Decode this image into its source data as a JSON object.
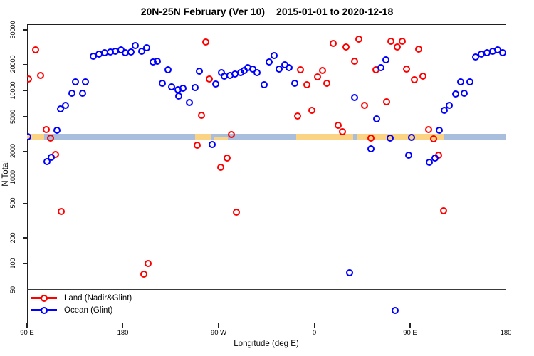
{
  "title": {
    "left": "20N-25N February (Ver 10)",
    "right": "2015-01-01 to 2020-12-18"
  },
  "axes": {
    "x": {
      "label": "Longitude (deg E)",
      "ticks": [
        {
          "deg": 90,
          "label": "90 E"
        },
        {
          "deg": 180,
          "label": "180"
        },
        {
          "deg": 270,
          "label": "90 W"
        },
        {
          "deg": 360,
          "label": "0"
        },
        {
          "deg": 450,
          "label": "90 E"
        },
        {
          "deg": 540,
          "label": "180"
        }
      ]
    },
    "y": {
      "label": "N Total",
      "scale": "log",
      "ticks": [
        50,
        100,
        200,
        500,
        1000,
        2000,
        5000,
        10000,
        20000,
        50000
      ]
    }
  },
  "legend": [
    {
      "label": "Land (Nadir&Glint)",
      "color": "#ff0000"
    },
    {
      "label": "Ocean (Glint)",
      "color": "#0000ff"
    }
  ],
  "colors": {
    "land": "#ff0000",
    "ocean": "#0000ff",
    "band_ocean": "#a8bedc",
    "band_land": "#fad384",
    "refline": "#3a3a3a"
  },
  "chart_data": {
    "type": "scatter",
    "title": "20N-25N February (Ver 10)  2015-01-01 to 2020-12-18",
    "xlabel": "Longitude (deg E)",
    "ylabel": "N Total",
    "x_axis_note": "longitude wraps: axis runs 90E,180,90W,0,90E,180 encoded as 90..540 deg",
    "x_range": [
      90,
      540
    ],
    "y_range_ticks": [
      50,
      50000
    ],
    "grid": false,
    "legend_position": "bottom-left",
    "refline_n": 51,
    "band": {
      "n_value": 2900,
      "note": "horizontal expected-count band: ocean-colored base with land-colored segments",
      "land_segments": [
        [
          90,
          106
        ],
        [
          248,
          262.5
        ],
        [
          343,
          481.5
        ]
      ],
      "land_low_segments": [
        [
          266,
          279
        ]
      ],
      "ocean_gap_segments": [
        [
          396.5,
          400
        ]
      ]
    },
    "series": [
      {
        "name": "Land (Nadir&Glint)",
        "color": "#ff0000",
        "points": [
          [
            98,
            29500
          ],
          [
            91,
            13500
          ],
          [
            103,
            14900
          ],
          [
            108,
            3560
          ],
          [
            112,
            2800
          ],
          [
            117,
            1810
          ],
          [
            122,
            403
          ],
          [
            204,
            100
          ],
          [
            200,
            76
          ],
          [
            258,
            36300
          ],
          [
            261.5,
            13500
          ],
          [
            250,
            2315
          ],
          [
            254,
            5200
          ],
          [
            278,
            1670
          ],
          [
            272,
            1295
          ],
          [
            282,
            3080
          ],
          [
            287,
            392
          ],
          [
            347,
            17400
          ],
          [
            353,
            11580
          ],
          [
            344,
            5030
          ],
          [
            357.5,
            5900
          ],
          [
            363,
            14400
          ],
          [
            368,
            16900
          ],
          [
            371.5,
            12170
          ],
          [
            377.5,
            35000
          ],
          [
            390,
            32000
          ],
          [
            382.6,
            3960
          ],
          [
            386.6,
            3340
          ],
          [
            397.5,
            21870
          ],
          [
            402,
            39100
          ],
          [
            407,
            6775
          ],
          [
            413.2,
            2800
          ],
          [
            417.6,
            17400
          ],
          [
            427.6,
            7350
          ],
          [
            432,
            37100
          ],
          [
            437.7,
            31900
          ],
          [
            442.6,
            36700
          ],
          [
            446.6,
            17760
          ],
          [
            453.8,
            13230
          ],
          [
            457.8,
            29850
          ],
          [
            462,
            14700
          ],
          [
            467.2,
            3560
          ],
          [
            472.3,
            2780
          ],
          [
            476.8,
            1780
          ],
          [
            481.4,
            411
          ]
        ]
      },
      {
        "name": "Ocean (Glint)",
        "color": "#0000ff",
        "points": [
          [
            90.7,
            2910
          ],
          [
            109,
            1500
          ],
          [
            113,
            1700
          ],
          [
            118.3,
            3450
          ],
          [
            121.5,
            6080
          ],
          [
            126.3,
            6690
          ],
          [
            132.4,
            9330
          ],
          [
            135.7,
            12560
          ],
          [
            142.4,
            9330
          ],
          [
            144.7,
            12560
          ],
          [
            152.4,
            24680
          ],
          [
            157.6,
            26290
          ],
          [
            162.9,
            27290
          ],
          [
            168.1,
            27670
          ],
          [
            173,
            28500
          ],
          [
            178.3,
            29600
          ],
          [
            182.3,
            27300
          ],
          [
            187.5,
            27970
          ],
          [
            191.5,
            32800
          ],
          [
            197.7,
            28500
          ],
          [
            202.6,
            31330
          ],
          [
            208.2,
            21470
          ],
          [
            212.6,
            21870
          ],
          [
            217.1,
            12170
          ],
          [
            222.7,
            17230
          ],
          [
            226,
            10940
          ],
          [
            231.6,
            10270
          ],
          [
            232.7,
            8610
          ],
          [
            236.7,
            10550
          ],
          [
            242.6,
            7260
          ],
          [
            247.7,
            10870
          ],
          [
            252.1,
            16690
          ],
          [
            264,
            2360
          ],
          [
            267.3,
            11800
          ],
          [
            272.9,
            16160
          ],
          [
            275.5,
            14710
          ],
          [
            280.7,
            14980
          ],
          [
            285.6,
            15470
          ],
          [
            290.7,
            16160
          ],
          [
            293.9,
            16910
          ],
          [
            297.4,
            18350
          ],
          [
            301.9,
            17770
          ],
          [
            306.3,
            16160
          ],
          [
            313,
            11590
          ],
          [
            317.5,
            21230
          ],
          [
            322.4,
            25470
          ],
          [
            326.9,
            17770
          ],
          [
            332.4,
            19900
          ],
          [
            336.4,
            18350
          ],
          [
            341.4,
            12030
          ],
          [
            392.9,
            79
          ],
          [
            397.6,
            8340
          ],
          [
            413.2,
            2110
          ],
          [
            418.5,
            4700
          ],
          [
            422.7,
            18350
          ],
          [
            427.2,
            22460
          ],
          [
            431,
            2800
          ],
          [
            435.8,
            29
          ],
          [
            448.4,
            1780
          ],
          [
            451.5,
            2890
          ],
          [
            468.3,
            1470
          ],
          [
            473.4,
            1670
          ],
          [
            477.4,
            3450
          ],
          [
            482.3,
            5900
          ],
          [
            486.8,
            6690
          ],
          [
            493,
            9160
          ],
          [
            497.5,
            12560
          ],
          [
            500.6,
            9280
          ],
          [
            506.4,
            12560
          ],
          [
            511.3,
            24350
          ],
          [
            516.8,
            26430
          ],
          [
            522,
            27300
          ],
          [
            527.3,
            28180
          ],
          [
            532.4,
            29430
          ],
          [
            536.9,
            27140
          ]
        ]
      }
    ]
  }
}
